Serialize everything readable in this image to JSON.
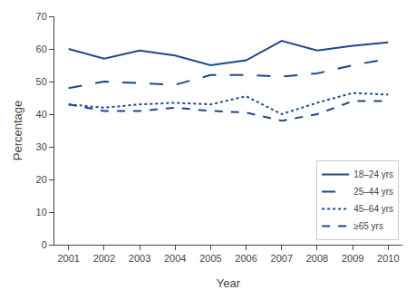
{
  "chart_data": {
    "type": "line",
    "x": [
      2001,
      2002,
      2003,
      2004,
      2005,
      2006,
      2007,
      2008,
      2009,
      2010
    ],
    "color": "#1a4a8a",
    "series": [
      {
        "name": "18–24 yrs",
        "line_style": "solid",
        "values": [
          60,
          57,
          59.5,
          58,
          55,
          56.5,
          62.5,
          59.5,
          61,
          62
        ]
      },
      {
        "name": "25–44 yrs",
        "line_style": "longdash",
        "values": [
          48,
          50,
          49.5,
          49,
          52,
          52,
          51.5,
          52.5,
          55,
          57
        ]
      },
      {
        "name": "45–64 yrs",
        "line_style": "dot",
        "values": [
          43,
          42,
          43,
          43.5,
          43,
          45.5,
          40,
          43.5,
          46.5,
          46
        ]
      },
      {
        "name": "≥65 yrs",
        "line_style": "dash",
        "values": [
          43,
          41,
          41,
          42,
          41,
          40.5,
          38,
          40,
          44,
          44
        ]
      }
    ],
    "xlabel": "Year",
    "ylabel": "Percentage",
    "xlim": [
      2000.6,
      2010.4
    ],
    "xticks": [
      2001,
      2002,
      2003,
      2004,
      2005,
      2006,
      2007,
      2008,
      2009,
      2010
    ],
    "ylim": [
      0,
      70
    ],
    "yticks": [
      0,
      10,
      20,
      30,
      40,
      50,
      60,
      70
    ],
    "grid": false,
    "legend": "lower right"
  }
}
